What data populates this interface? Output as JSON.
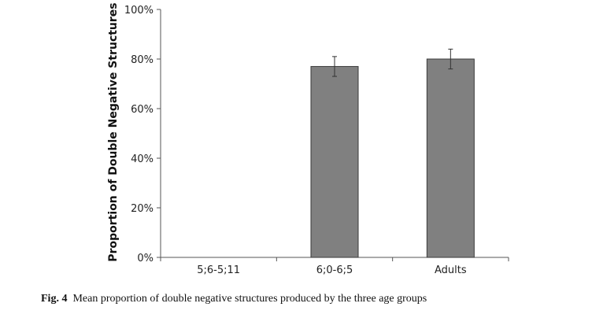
{
  "chart_data": {
    "type": "bar",
    "categories": [
      "5;6-5;11",
      "6;0-6;5",
      "Adults"
    ],
    "values": [
      0,
      77,
      80
    ],
    "error": [
      0,
      4,
      4
    ],
    "ylabel": "Proportion of Double Negative Structures",
    "ylim": [
      0,
      100
    ],
    "yticks": [
      "0%",
      "20%",
      "40%",
      "60%",
      "80%",
      "100%"
    ],
    "bar_color": "#808080",
    "grid": false
  },
  "caption": {
    "label": "Fig. 4",
    "text": "Mean proportion of double negative structures produced by the three age groups"
  }
}
